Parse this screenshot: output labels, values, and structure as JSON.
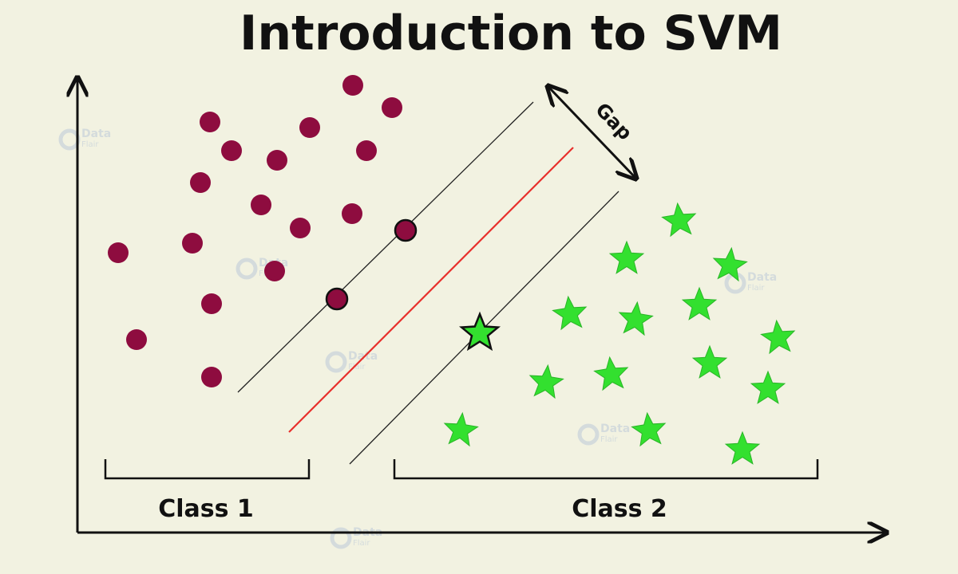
{
  "title": "Introduction to SVM",
  "labels": {
    "class1": "Class 1",
    "class2": "Class 2",
    "gap": "Gap"
  },
  "watermark": {
    "brand": "Data",
    "sub": "Flair"
  },
  "colors": {
    "background": "#f2f2e1",
    "class1_point": "#8e0c3f",
    "class2_point": "#33e02f",
    "hyperplane": "#e8302c",
    "margin_line": "#222222",
    "axis": "#111111"
  },
  "icons": {
    "class1_marker": "circle",
    "class2_marker": "star",
    "gap_arrow": "double-headed-arrow",
    "watermark_logo": "dataflair-logo-icon"
  }
}
